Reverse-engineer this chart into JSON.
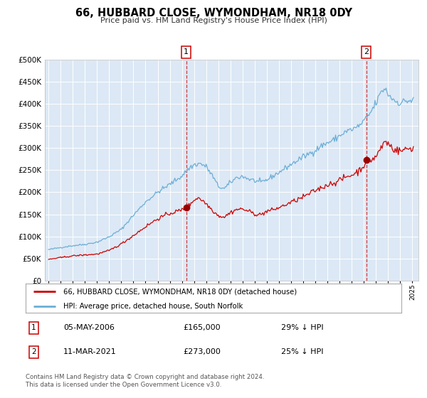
{
  "title": "66, HUBBARD CLOSE, WYMONDHAM, NR18 0DY",
  "subtitle": "Price paid vs. HM Land Registry's House Price Index (HPI)",
  "legend_line1": "66, HUBBARD CLOSE, WYMONDHAM, NR18 0DY (detached house)",
  "legend_line2": "HPI: Average price, detached house, South Norfolk",
  "annotation1_date": "05-MAY-2006",
  "annotation1_price": "£165,000",
  "annotation1_hpi": "29% ↓ HPI",
  "annotation2_date": "11-MAR-2021",
  "annotation2_price": "£273,000",
  "annotation2_hpi": "25% ↓ HPI",
  "copyright": "Contains HM Land Registry data © Crown copyright and database right 2024.\nThis data is licensed under the Open Government Licence v3.0.",
  "marker1_x": 2006.35,
  "marker1_y": 165000,
  "marker2_x": 2021.19,
  "marker2_y": 273000,
  "vline1_x": 2006.35,
  "vline2_x": 2021.19,
  "hpi_color": "#6baed6",
  "price_color": "#cc0000",
  "bg_color": "#dce8f5",
  "ylim": [
    0,
    500000
  ],
  "xlim_start": 1994.7,
  "xlim_end": 2025.5
}
